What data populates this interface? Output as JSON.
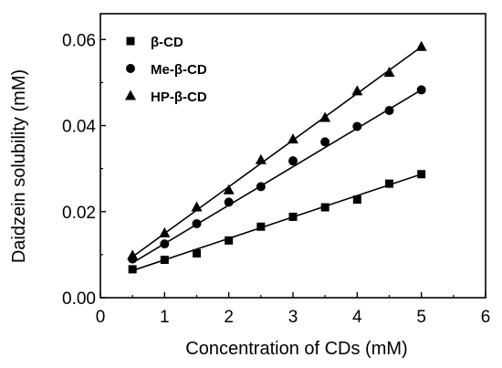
{
  "chart_data": {
    "type": "scatter",
    "title": "",
    "xlabel": "Concentration of CDs (mM)",
    "ylabel": "Daidzein solubility (mM)",
    "xlim": [
      0,
      6
    ],
    "ylim": [
      0,
      0.066
    ],
    "xticks": [
      0,
      1,
      2,
      3,
      4,
      5,
      6
    ],
    "xtick_labels": [
      "0",
      "1",
      "2",
      "3",
      "4",
      "5",
      "6"
    ],
    "yticks": [
      0,
      0.02,
      0.04,
      0.06
    ],
    "ytick_labels": [
      "0.00",
      "0.02",
      "0.04",
      "0.06"
    ],
    "grid": false,
    "legend_position": "top-left",
    "x": [
      0.5,
      1.0,
      1.5,
      2.0,
      2.5,
      3.0,
      3.5,
      4.0,
      4.5,
      5.0
    ],
    "series": [
      {
        "name": "β-CD",
        "marker": "square",
        "values": [
          0.0066,
          0.0088,
          0.0103,
          0.0133,
          0.0165,
          0.0188,
          0.021,
          0.0228,
          0.0265,
          0.0287
        ],
        "fit_line": [
          0.0063,
          0.0287
        ]
      },
      {
        "name": "Me-β-CD",
        "marker": "circle",
        "values": [
          0.009,
          0.0125,
          0.0172,
          0.0222,
          0.0258,
          0.0318,
          0.0362,
          0.0398,
          0.0435,
          0.0483
        ],
        "fit_line": [
          0.0081,
          0.0483
        ]
      },
      {
        "name": "HP-β-CD",
        "marker": "triangle",
        "values": [
          0.0098,
          0.015,
          0.021,
          0.025,
          0.032,
          0.0368,
          0.0418,
          0.048,
          0.0523,
          0.0583
        ],
        "fit_line": [
          0.0095,
          0.0583
        ]
      }
    ]
  }
}
